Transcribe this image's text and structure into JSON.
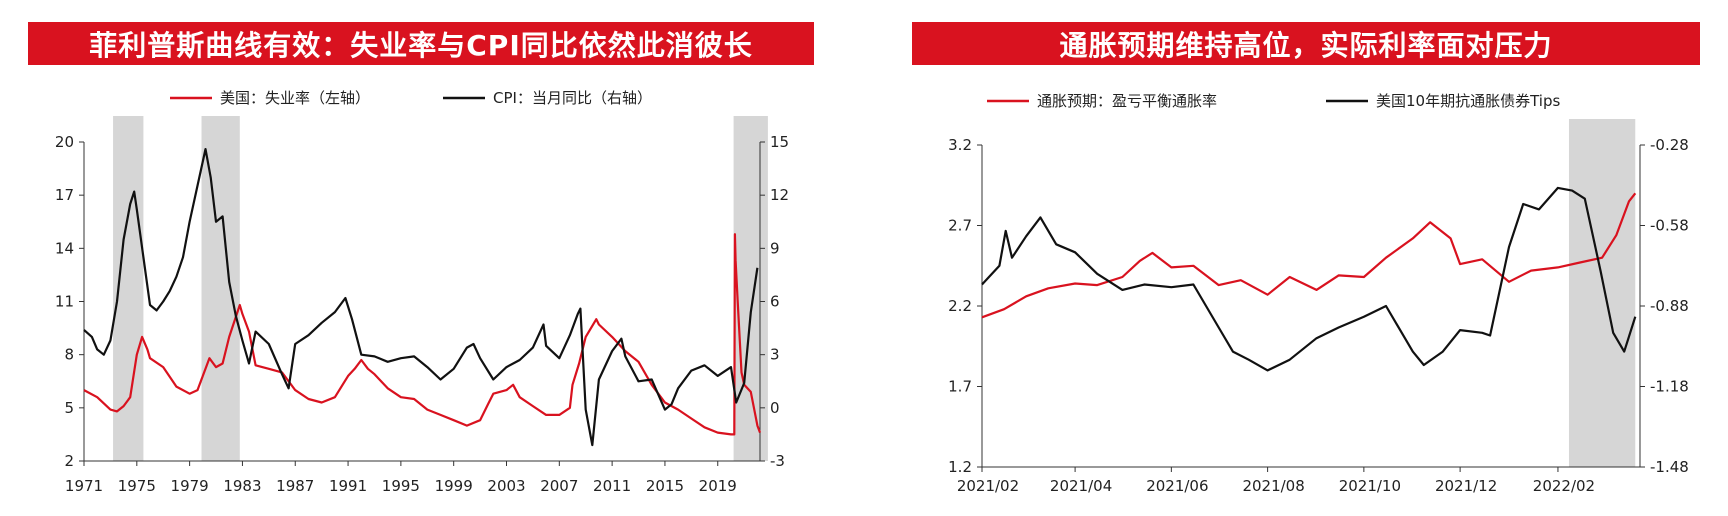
{
  "banners": {
    "left": "菲利普斯曲线有效：失业率与CPI同比依然此消彼长",
    "right": "通胀预期维持高位，实际利率面对压力"
  },
  "chart_data": [
    {
      "type": "line",
      "legend_position": "top",
      "grid": false,
      "x_ticks": [
        "1971",
        "1975",
        "1979",
        "1983",
        "1987",
        "1991",
        "1995",
        "1999",
        "2003",
        "2007",
        "2011",
        "2015",
        "2019"
      ],
      "xlim": [
        1971,
        2022.2
      ],
      "y_left": {
        "ylim": [
          2,
          20
        ],
        "ticks": [
          "20",
          "17",
          "14",
          "11",
          "8",
          "5",
          "2"
        ]
      },
      "y_right": {
        "ylim": [
          -3,
          15
        ],
        "ticks": [
          "15",
          "12",
          "9",
          "6",
          "3",
          "0",
          "-3"
        ]
      },
      "shaded_ranges": [
        [
          1973.2,
          1975.5
        ],
        [
          1979.9,
          1982.8
        ],
        [
          2020.2,
          2022.8
        ]
      ],
      "series": [
        {
          "name": "美国：失业率（左轴）",
          "axis": "left",
          "color": "#d9121f",
          "x": [
            1971,
            1972,
            1973,
            1973.5,
            1974,
            1974.5,
            1975,
            1975.4,
            1975.8,
            1976,
            1977,
            1978,
            1979,
            1979.6,
            1980.3,
            1980.5,
            1981,
            1981.5,
            1982,
            1982.8,
            1983,
            1983.5,
            1984,
            1985,
            1986,
            1987,
            1988,
            1989,
            1990,
            1991,
            1991.5,
            1992,
            1992.5,
            1993,
            1994,
            1995,
            1996,
            1997,
            1998,
            1999,
            2000,
            2001,
            2001.6,
            2002,
            2003,
            2003.5,
            2004,
            2005,
            2006,
            2007,
            2007.8,
            2008,
            2008.5,
            2009,
            2009.8,
            2010,
            2011,
            2012,
            2013,
            2014,
            2015,
            2016,
            2017,
            2018,
            2019,
            2020,
            2020.25,
            2020.3,
            2020.35,
            2020.5,
            2020.8,
            2021,
            2021.5,
            2022,
            2022.2
          ],
          "y": [
            6.0,
            5.6,
            4.9,
            4.8,
            5.1,
            5.6,
            8.0,
            9.0,
            8.3,
            7.8,
            7.3,
            6.2,
            5.8,
            6.0,
            7.4,
            7.8,
            7.3,
            7.5,
            9.0,
            10.8,
            10.3,
            9.3,
            7.4,
            7.2,
            7.0,
            6.0,
            5.5,
            5.3,
            5.6,
            6.8,
            7.2,
            7.7,
            7.2,
            6.9,
            6.1,
            5.6,
            5.5,
            4.9,
            4.6,
            4.3,
            4.0,
            4.3,
            5.2,
            5.8,
            6.0,
            6.3,
            5.6,
            5.1,
            4.6,
            4.6,
            5.0,
            6.3,
            7.5,
            9.0,
            10.0,
            9.7,
            9.0,
            8.2,
            7.6,
            6.3,
            5.3,
            4.9,
            4.4,
            3.9,
            3.6,
            3.5,
            3.5,
            14.8,
            13.3,
            11.1,
            7.0,
            6.3,
            5.9,
            4.0,
            3.6
          ]
        },
        {
          "name": "CPI：当月同比（右轴）",
          "axis": "right",
          "color": "#111111",
          "x": [
            1971,
            1971.6,
            1972,
            1972.5,
            1973,
            1973.5,
            1974,
            1974.5,
            1974.8,
            1975,
            1975.5,
            1976,
            1976.5,
            1977,
            1977.5,
            1978,
            1978.5,
            1979,
            1979.5,
            1980.2,
            1980.6,
            1981,
            1981.5,
            1982,
            1982.5,
            1983,
            1983.5,
            1984,
            1985,
            1986,
            1986.5,
            1987,
            1988,
            1989,
            1990,
            1990.8,
            1991.3,
            1992,
            1993,
            1994,
            1995,
            1996,
            1997,
            1998,
            1999,
            2000,
            2000.5,
            2001,
            2002,
            2003,
            2004,
            2005,
            2005.8,
            2006,
            2007,
            2007.8,
            2008.4,
            2008.6,
            2009,
            2009.5,
            2010,
            2011,
            2011.7,
            2012,
            2013,
            2014,
            2015,
            2015.5,
            2016,
            2017,
            2018,
            2019,
            2020,
            2020.4,
            2021,
            2021.5,
            2022
          ],
          "y": [
            4.4,
            4.0,
            3.3,
            3.0,
            3.8,
            6.0,
            9.5,
            11.5,
            12.2,
            11.2,
            8.5,
            5.8,
            5.5,
            6.0,
            6.6,
            7.4,
            8.5,
            10.5,
            12.2,
            14.6,
            13.0,
            10.5,
            10.8,
            7.1,
            5.2,
            3.8,
            2.5,
            4.3,
            3.6,
            1.9,
            1.1,
            3.6,
            4.1,
            4.8,
            5.4,
            6.2,
            5.0,
            3.0,
            2.9,
            2.6,
            2.8,
            2.9,
            2.3,
            1.6,
            2.2,
            3.4,
            3.6,
            2.8,
            1.6,
            2.3,
            2.7,
            3.4,
            4.7,
            3.5,
            2.8,
            4.1,
            5.3,
            5.6,
            -0.1,
            -2.1,
            1.6,
            3.2,
            3.9,
            2.9,
            1.5,
            1.6,
            -0.1,
            0.2,
            1.1,
            2.1,
            2.4,
            1.8,
            2.3,
            0.3,
            1.4,
            5.4,
            7.9
          ]
        }
      ]
    },
    {
      "type": "line",
      "legend_position": "top",
      "grid": false,
      "x_ticks": [
        "2021/02",
        "2021/04",
        "2021/06",
        "2021/08",
        "2021/10",
        "2021/12",
        "2022/02"
      ],
      "xlim": [
        "2021-02-01",
        "2022-03-25"
      ],
      "y_left": {
        "ylim": [
          1.2,
          3.2
        ],
        "ticks": [
          "3.2",
          "2.7",
          "2.2",
          "1.7",
          "1.2"
        ]
      },
      "y_right": {
        "ylim": [
          -1.48,
          -0.28
        ],
        "ticks": [
          "-0.28",
          "-0.58",
          "-0.88",
          "-1.18",
          "-1.48"
        ]
      },
      "shaded_ranges": [
        [
          "2022-02-08",
          "2022-03-22"
        ]
      ],
      "series": [
        {
          "name": "通胀预期：盈亏平衡通胀率",
          "axis": "left",
          "color": "#d9121f",
          "x": [
            "2021-02-01",
            "2021-02-15",
            "2021-03-01",
            "2021-03-15",
            "2021-04-01",
            "2021-04-15",
            "2021-05-01",
            "2021-05-12",
            "2021-05-20",
            "2021-06-01",
            "2021-06-15",
            "2021-07-01",
            "2021-07-15",
            "2021-08-01",
            "2021-08-15",
            "2021-09-01",
            "2021-09-15",
            "2021-10-01",
            "2021-10-15",
            "2021-11-01",
            "2021-11-12",
            "2021-11-25",
            "2021-12-01",
            "2021-12-15",
            "2022-01-01",
            "2022-01-15",
            "2022-02-01",
            "2022-02-15",
            "2022-03-01",
            "2022-03-10",
            "2022-03-18",
            "2022-03-22"
          ],
          "y": [
            2.13,
            2.18,
            2.26,
            2.31,
            2.34,
            2.33,
            2.38,
            2.48,
            2.53,
            2.44,
            2.45,
            2.33,
            2.36,
            2.27,
            2.38,
            2.3,
            2.39,
            2.38,
            2.5,
            2.62,
            2.72,
            2.62,
            2.46,
            2.49,
            2.35,
            2.42,
            2.44,
            2.47,
            2.5,
            2.64,
            2.85,
            2.9
          ]
        },
        {
          "name": "美国10年期抗通胀债券Tips",
          "axis": "right",
          "color": "#111111",
          "x": [
            "2021-02-01",
            "2021-02-12",
            "2021-02-16",
            "2021-02-20",
            "2021-03-01",
            "2021-03-10",
            "2021-03-20",
            "2021-04-01",
            "2021-04-15",
            "2021-05-01",
            "2021-05-15",
            "2021-06-01",
            "2021-06-15",
            "2021-07-01",
            "2021-07-10",
            "2021-07-20",
            "2021-08-01",
            "2021-08-15",
            "2021-09-01",
            "2021-09-15",
            "2021-10-01",
            "2021-10-15",
            "2021-11-01",
            "2021-11-08",
            "2021-11-20",
            "2021-12-01",
            "2021-12-15",
            "2021-12-20",
            "2022-01-01",
            "2022-01-10",
            "2022-01-20",
            "2022-02-01",
            "2022-02-10",
            "2022-02-18",
            "2022-02-28",
            "2022-03-08",
            "2022-03-15",
            "2022-03-22"
          ],
          "y": [
            -0.8,
            -0.73,
            -0.6,
            -0.7,
            -0.62,
            -0.55,
            -0.65,
            -0.68,
            -0.76,
            -0.82,
            -0.8,
            -0.81,
            -0.8,
            -0.96,
            -1.05,
            -1.08,
            -1.12,
            -1.08,
            -1.0,
            -0.96,
            -0.92,
            -0.88,
            -1.05,
            -1.1,
            -1.05,
            -0.97,
            -0.98,
            -0.99,
            -0.66,
            -0.5,
            -0.52,
            -0.44,
            -0.45,
            -0.48,
            -0.75,
            -0.98,
            -1.05,
            -0.92
          ]
        }
      ]
    }
  ]
}
